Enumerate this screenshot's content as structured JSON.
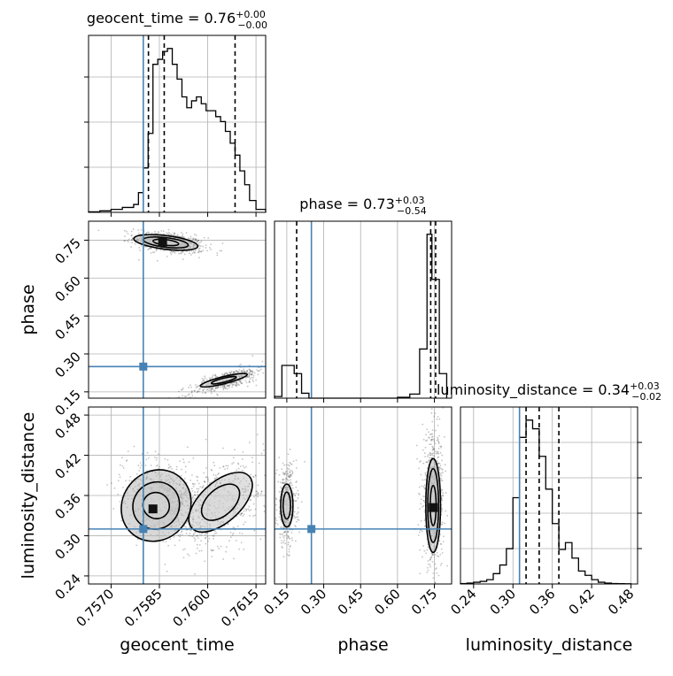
{
  "chart_data": [
    {
      "panel": "geocent_time-1d",
      "type": "bar",
      "title": {
        "param": "geocent_time",
        "value": "0.76",
        "plus": "+0.00",
        "minus": "−0.00"
      },
      "xlim": [
        0.7563,
        0.7618
      ],
      "x_ticks": [
        0.757,
        0.7585,
        0.76,
        0.7615
      ],
      "quantiles": [
        0.75816,
        0.75865,
        0.76085
      ],
      "truth": 0.758,
      "bin_edges": [
        0.7563,
        0.75665,
        0.757,
        0.75735,
        0.7577,
        0.75785,
        0.758,
        0.75815,
        0.7583,
        0.75845,
        0.7586,
        0.75875,
        0.7589,
        0.75905,
        0.7592,
        0.75935,
        0.7595,
        0.75965,
        0.7598,
        0.75995,
        0.7601,
        0.76025,
        0.7604,
        0.76055,
        0.7607,
        0.76085,
        0.761,
        0.76115,
        0.7613,
        0.7615,
        0.7618
      ],
      "values": [
        0.5,
        1.5,
        3,
        5,
        8,
        20,
        45,
        80,
        150,
        155,
        163,
        166,
        150,
        135,
        117,
        106,
        113,
        117,
        110,
        103,
        103,
        97,
        92,
        82,
        70,
        58,
        42,
        28,
        12,
        3
      ]
    },
    {
      "panel": "phase-1d",
      "type": "bar",
      "title": {
        "param": "phase",
        "value": "0.73",
        "plus": "+0.03",
        "minus": "−0.54"
      },
      "xlim": [
        0.1,
        0.82
      ],
      "x_ticks": [
        0.15,
        0.3,
        0.45,
        0.6,
        0.75
      ],
      "quantiles": [
        0.19,
        0.735,
        0.755
      ],
      "truth": 0.25,
      "bin_edges": [
        0.1,
        0.13,
        0.15,
        0.18,
        0.21,
        0.24,
        0.6,
        0.65,
        0.69,
        0.72,
        0.74,
        0.77,
        0.8
      ],
      "values": [
        2,
        40,
        40,
        30,
        6,
        0,
        1,
        5,
        60,
        200,
        145,
        30
      ]
    },
    {
      "panel": "luminosity_distance-1d",
      "type": "bar",
      "title": {
        "param": "luminosity_distance",
        "value": "0.34",
        "plus": "+0.03",
        "minus": "−0.02"
      },
      "xlim": [
        0.22,
        0.49
      ],
      "x_ticks": [
        0.24,
        0.3,
        0.36,
        0.42,
        0.48
      ],
      "quantiles": [
        0.32,
        0.34,
        0.37
      ],
      "truth": 0.31,
      "bin_edges": [
        0.22,
        0.23,
        0.24,
        0.25,
        0.26,
        0.27,
        0.28,
        0.29,
        0.3,
        0.31,
        0.32,
        0.33,
        0.34,
        0.35,
        0.36,
        0.37,
        0.38,
        0.39,
        0.4,
        0.41,
        0.42,
        0.43,
        0.44,
        0.45,
        0.46,
        0.47,
        0.48
      ],
      "values": [
        0.5,
        1,
        2,
        3,
        5,
        12,
        22,
        41,
        100,
        170,
        190,
        180,
        148,
        110,
        70,
        40,
        48,
        30,
        15,
        10,
        5,
        2,
        1,
        0.5,
        0.3,
        0.2
      ]
    },
    {
      "panel": "geocent_time-vs-phase",
      "type": "scatter",
      "xlabel": "",
      "ylabel": "phase",
      "xlim": [
        0.7563,
        0.7618
      ],
      "ylim": [
        0.125,
        0.825
      ],
      "y_ticks": [
        0.15,
        0.3,
        0.45,
        0.6,
        0.75
      ],
      "truth": [
        0.758,
        0.25
      ],
      "clusters": [
        {
          "center": [
            0.7588,
            0.74
          ],
          "spread": [
            0.00055,
            0.02
          ],
          "n": 650,
          "tilt": -8
        },
        {
          "center": [
            0.7606,
            0.195
          ],
          "spread": [
            0.0006,
            0.018
          ],
          "n": 450,
          "tilt": 18
        }
      ],
      "contours": [
        {
          "center": [
            0.7587,
            0.741
          ],
          "radii": [
            [
              0.0004,
              0.011
            ],
            [
              0.0007,
              0.019
            ],
            [
              0.001,
              0.027
            ]
          ],
          "tilt": -7
        },
        {
          "center": [
            0.7605,
            0.196
          ],
          "radii": [
            [
              0.0004,
              0.008
            ],
            [
              0.00075,
              0.014
            ]
          ],
          "tilt": 14
        }
      ],
      "peak": [
        0.7586,
        0.742
      ]
    },
    {
      "panel": "geocent_time-vs-luminosity_distance",
      "type": "scatter",
      "xlabel": "geocent_time",
      "ylabel": "luminosity_distance",
      "xlim": [
        0.7563,
        0.7618
      ],
      "ylim": [
        0.228,
        0.492
      ],
      "x_ticks": [
        0.757,
        0.7585,
        0.76,
        0.7615
      ],
      "y_ticks": [
        0.24,
        0.3,
        0.36,
        0.42,
        0.48
      ],
      "x_tick_labels": [
        "0.7570",
        "0.7585",
        "0.7600",
        "0.7615"
      ],
      "truth": [
        0.758,
        0.31
      ],
      "clusters": [
        {
          "center": [
            0.7586,
            0.355
          ],
          "spread": [
            0.00055,
            0.032
          ],
          "n": 650,
          "tilt": 55
        },
        {
          "center": [
            0.7604,
            0.35
          ],
          "spread": [
            0.0008,
            0.028
          ],
          "n": 550,
          "tilt": 45
        }
      ],
      "contours": [
        {
          "center": [
            0.7584,
            0.345
          ],
          "radii": [
            [
              0.0004,
              0.02
            ],
            [
              0.00075,
              0.034
            ],
            [
              0.00115,
              0.05
            ]
          ],
          "tilt": 52
        },
        {
          "center": [
            0.7604,
            0.35
          ],
          "radii": [
            [
              0.0007,
              0.02
            ],
            [
              0.0012,
              0.03
            ]
          ],
          "tilt": 42
        }
      ],
      "peak": [
        0.7583,
        0.34
      ]
    },
    {
      "panel": "phase-vs-luminosity_distance",
      "type": "scatter",
      "xlabel": "phase",
      "ylabel": "",
      "xlim": [
        0.1,
        0.82
      ],
      "ylim": [
        0.228,
        0.492
      ],
      "x_ticks": [
        0.15,
        0.3,
        0.45,
        0.6,
        0.75
      ],
      "truth": [
        0.25,
        0.31
      ],
      "clusters": [
        {
          "center": [
            0.15,
            0.345
          ],
          "spread": [
            0.02,
            0.03
          ],
          "n": 450,
          "tilt": 0
        },
        {
          "center": [
            0.745,
            0.355
          ],
          "spread": [
            0.022,
            0.048
          ],
          "n": 650,
          "tilt": 0
        }
      ],
      "contours": [
        {
          "center": [
            0.15,
            0.345
          ],
          "radii": [
            [
              0.015,
              0.02
            ],
            [
              0.025,
              0.032
            ]
          ],
          "tilt": 0
        },
        {
          "center": [
            0.745,
            0.345
          ],
          "radii": [
            [
              0.012,
              0.03
            ],
            [
              0.022,
              0.055
            ],
            [
              0.03,
              0.07
            ]
          ],
          "tilt": 0
        }
      ],
      "peak": [
        0.745,
        0.342
      ]
    }
  ],
  "style": {
    "truth_color": "#4682b4",
    "grid_color": "#b0b0b0",
    "hist_color": "#000000",
    "quantile_color": "#000000"
  }
}
